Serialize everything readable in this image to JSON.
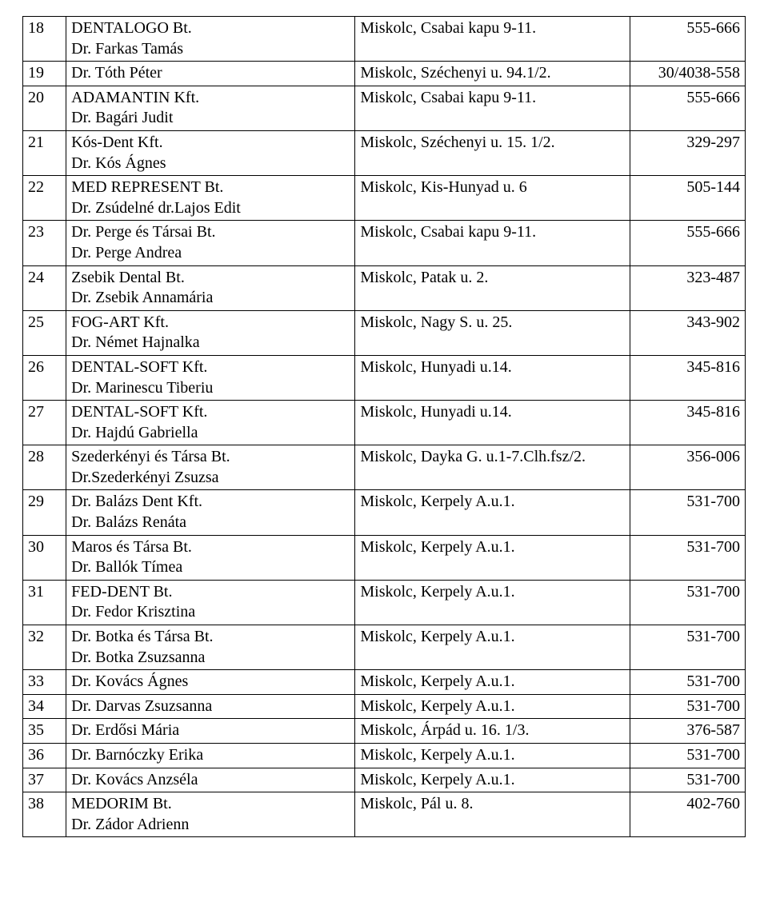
{
  "table": {
    "font_family": "Times New Roman",
    "font_size_pt": 15,
    "border_color": "#000000",
    "background_color": "#ffffff",
    "rows": [
      {
        "num": "18",
        "name": [
          "DENTALOGO Bt.",
          "Dr. Farkas Tamás"
        ],
        "addr": [
          "Miskolc, Csabai kapu 9-11."
        ],
        "phone": "555-666"
      },
      {
        "num": "19",
        "name": [
          "Dr. Tóth Péter"
        ],
        "addr": [
          "Miskolc, Széchenyi u. 94.1/2."
        ],
        "phone": "30/4038-558"
      },
      {
        "num": "20",
        "name": [
          "ADAMANTIN Kft.",
          "Dr. Bagári Judit"
        ],
        "addr": [
          "Miskolc, Csabai kapu 9-11."
        ],
        "phone": "555-666"
      },
      {
        "num": "21",
        "name": [
          "Kós-Dent Kft.",
          "Dr. Kós Ágnes"
        ],
        "addr": [
          "Miskolc, Széchenyi u. 15. 1/2."
        ],
        "phone": "329-297"
      },
      {
        "num": "22",
        "name": [
          "MED REPRESENT Bt.",
          "Dr. Zsúdelné dr.Lajos Edit"
        ],
        "addr": [
          "Miskolc, Kis-Hunyad u. 6"
        ],
        "phone": "505-144"
      },
      {
        "num": "23",
        "name": [
          "Dr. Perge és Társai Bt.",
          "Dr. Perge Andrea"
        ],
        "addr": [
          "Miskolc, Csabai kapu 9-11."
        ],
        "phone": "555-666"
      },
      {
        "num": "24",
        "name": [
          "Zsebik Dental Bt.",
          "Dr. Zsebik Annamária"
        ],
        "addr": [
          "Miskolc, Patak u. 2."
        ],
        "phone": "323-487"
      },
      {
        "num": "25",
        "name": [
          "FOG-ART Kft.",
          "Dr. Német Hajnalka"
        ],
        "addr": [
          "Miskolc, Nagy S. u. 25."
        ],
        "phone": "343-902"
      },
      {
        "num": "26",
        "name": [
          "DENTAL-SOFT Kft.",
          "Dr. Marinescu Tiberiu"
        ],
        "addr": [
          "Miskolc, Hunyadi u.14."
        ],
        "phone": "345-816"
      },
      {
        "num": "27",
        "name": [
          "DENTAL-SOFT Kft.",
          "Dr. Hajdú Gabriella"
        ],
        "addr": [
          "Miskolc, Hunyadi u.14."
        ],
        "phone": "345-816"
      },
      {
        "num": "28",
        "name": [
          "Szederkényi és Társa Bt.",
          "Dr.Szederkényi Zsuzsa"
        ],
        "addr": [
          "Miskolc, Dayka G. u.1-7.Clh.fsz/2."
        ],
        "phone": "356-006"
      },
      {
        "num": "29",
        "name": [
          "Dr. Balázs Dent Kft.",
          "Dr. Balázs Renáta"
        ],
        "addr": [
          "Miskolc, Kerpely A.u.1."
        ],
        "phone": "531-700"
      },
      {
        "num": "30",
        "name": [
          "Maros és Társa Bt.",
          "Dr. Ballók Tímea"
        ],
        "addr": [
          "Miskolc, Kerpely A.u.1."
        ],
        "phone": "531-700"
      },
      {
        "num": "31",
        "name": [
          "FED-DENT Bt.",
          "Dr. Fedor Krisztina"
        ],
        "addr": [
          "Miskolc, Kerpely A.u.1."
        ],
        "phone": "531-700"
      },
      {
        "num": "32",
        "name": [
          "Dr. Botka és Társa Bt.",
          "Dr. Botka Zsuzsanna"
        ],
        "addr": [
          "Miskolc, Kerpely A.u.1."
        ],
        "phone": "531-700"
      },
      {
        "num": "33",
        "name": [
          "Dr. Kovács Ágnes"
        ],
        "addr": [
          "Miskolc, Kerpely A.u.1."
        ],
        "phone": "531-700"
      },
      {
        "num": "34",
        "name": [
          "Dr. Darvas Zsuzsanna"
        ],
        "addr": [
          "Miskolc, Kerpely A.u.1."
        ],
        "phone": "531-700"
      },
      {
        "num": "35",
        "name": [
          "Dr. Erdősi Mária"
        ],
        "addr": [
          "Miskolc, Árpád u. 16. 1/3."
        ],
        "phone": "376-587"
      },
      {
        "num": "36",
        "name": [
          "Dr. Barnóczky Erika"
        ],
        "addr": [
          "Miskolc, Kerpely A.u.1."
        ],
        "phone": "531-700"
      },
      {
        "num": "37",
        "name": [
          "Dr. Kovács Anzséla"
        ],
        "addr": [
          "Miskolc, Kerpely A.u.1."
        ],
        "phone": "531-700"
      },
      {
        "num": "38",
        "name": [
          "MEDORIM Bt.",
          "Dr. Zádor Adrienn"
        ],
        "addr": [
          "Miskolc, Pál u. 8."
        ],
        "phone": "402-760"
      }
    ]
  }
}
